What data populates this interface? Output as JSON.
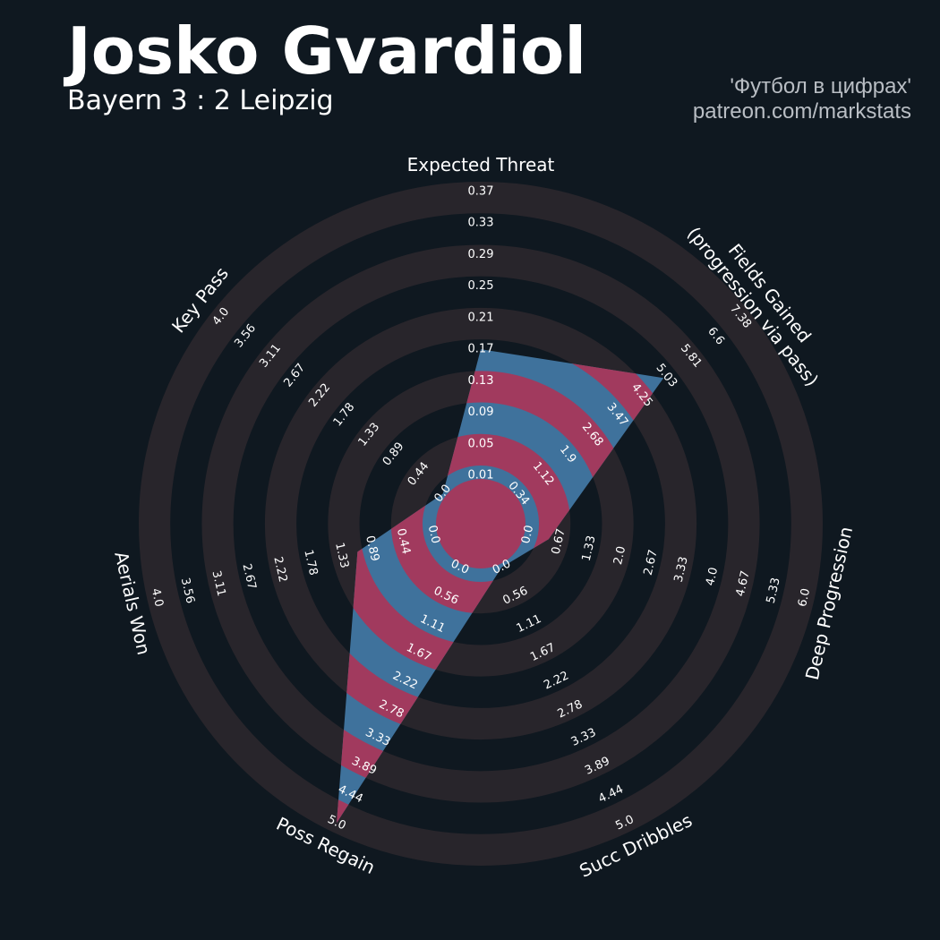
{
  "chart_data": {
    "type": "radar",
    "title": "Josko Gvardiol",
    "subtitle": "Bayern 3 : 2 Leipzig",
    "credits": [
      "'Футбол в цифрах'",
      "patreon.com/markstats"
    ],
    "colors": {
      "background": "#0f1820",
      "rings": "#28252b",
      "fill": "#3f729c",
      "fill_alt": "#a13a5e"
    },
    "axes": [
      {
        "label": [
          "Expected Threat"
        ],
        "value": 0.17,
        "lim": [
          0.01,
          0.37
        ],
        "ticks": [
          0.01,
          0.05,
          0.09,
          0.13,
          0.17,
          0.21,
          0.25,
          0.29,
          0.33,
          0.37
        ]
      },
      {
        "label": [
          "Fields Gained",
          "(progression via pass)"
        ],
        "value": 4.94,
        "lim": [
          0.34,
          7.38
        ],
        "ticks": [
          0.34,
          1.12,
          1.9,
          2.68,
          3.47,
          4.25,
          5.03,
          5.81,
          6.6,
          7.38
        ]
      },
      {
        "label": [
          "Deep Progression"
        ],
        "value": 0.45,
        "lim": [
          0,
          6
        ],
        "ticks": [
          {
            "value": 0,
            "label": "0.0"
          },
          0.67,
          1.33,
          {
            "value": 2,
            "label": "2.0"
          },
          2.67,
          3.33,
          {
            "value": 4,
            "label": "4.0"
          },
          4.67,
          5.33,
          {
            "value": 6,
            "label": "6.0"
          }
        ]
      },
      {
        "label": [
          "Succ Dribbles"
        ],
        "value": 0,
        "lim": [
          0,
          5
        ],
        "ticks": [
          {
            "value": 0,
            "label": "0.0"
          },
          0.56,
          1.11,
          1.67,
          2.22,
          2.78,
          3.33,
          3.89,
          4.44,
          {
            "value": 5,
            "label": "5.0"
          }
        ]
      },
      {
        "label": [
          "Poss Regain"
        ],
        "value": 5,
        "lim": [
          0,
          5
        ],
        "ticks": [
          {
            "value": 0,
            "label": "0.0"
          },
          0.56,
          1.11,
          1.67,
          2.22,
          2.78,
          3.33,
          3.89,
          4.44,
          {
            "value": 5,
            "label": "5.0"
          }
        ]
      },
      {
        "label": [
          "Aerials Won"
        ],
        "value": 1.1,
        "lim": [
          0,
          4
        ],
        "ticks": [
          {
            "value": 0,
            "label": "0.0"
          },
          0.44,
          0.89,
          1.33,
          1.78,
          2.22,
          2.67,
          3.11,
          3.56,
          {
            "value": 4,
            "label": "4.0"
          }
        ]
      },
      {
        "label": [
          "Key Pass"
        ],
        "value": 0,
        "lim": [
          0,
          4
        ],
        "ticks": [
          {
            "value": 0,
            "label": "0.0"
          },
          0.44,
          0.89,
          1.33,
          1.78,
          2.22,
          2.67,
          3.11,
          3.56,
          {
            "value": 4,
            "label": "4.0"
          }
        ]
      }
    ]
  }
}
